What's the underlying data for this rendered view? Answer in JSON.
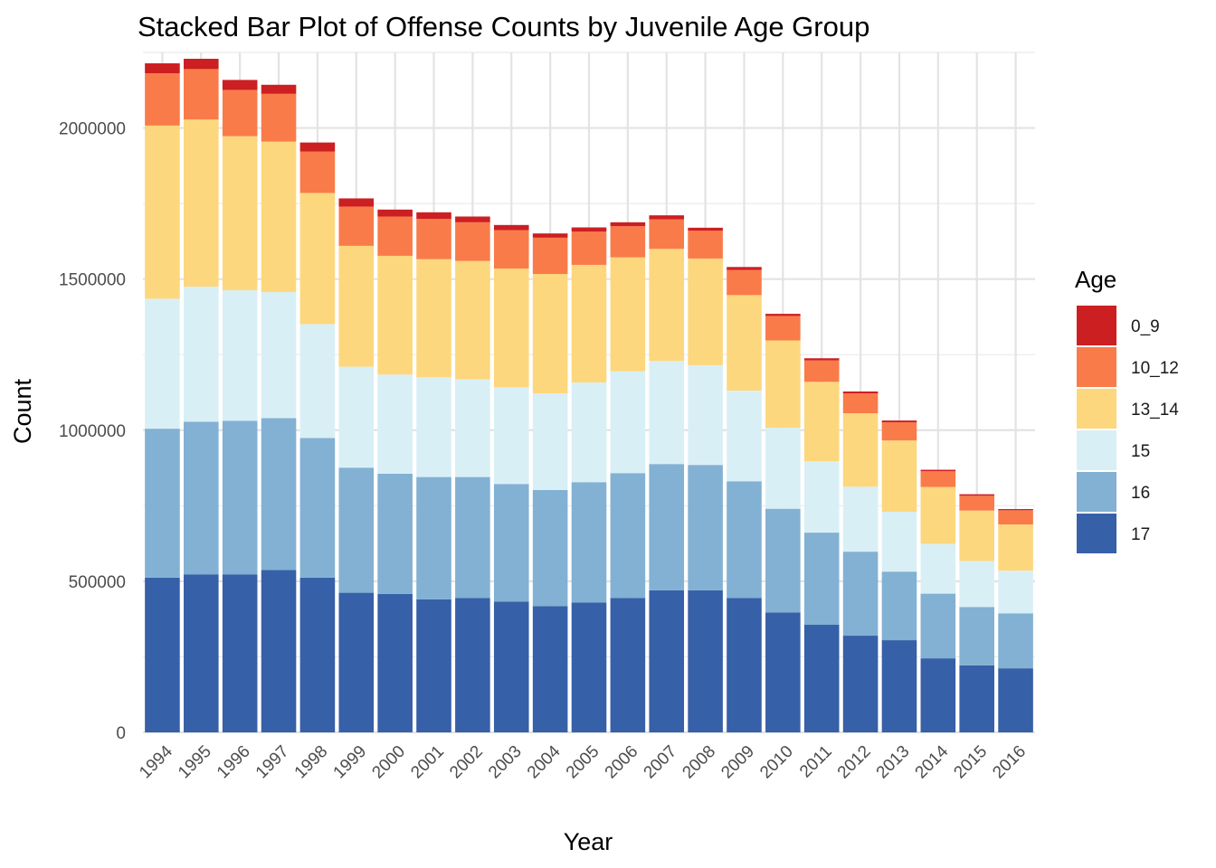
{
  "chart_data": {
    "type": "bar",
    "stacked": true,
    "title": "Stacked Bar Plot of Offense Counts by Juvenile Age Group",
    "xlabel": "Year",
    "ylabel": "Count",
    "ylim": [
      0,
      2250000
    ],
    "yticks": [
      0,
      500000,
      1000000,
      1500000,
      2000000
    ],
    "ytick_labels": [
      "0",
      "500000",
      "1000000",
      "1500000",
      "2000000"
    ],
    "grid": true,
    "legend_position": "right",
    "legend_title": "Age",
    "categories": [
      "1994",
      "1995",
      "1996",
      "1997",
      "1998",
      "1999",
      "2000",
      "2001",
      "2002",
      "2003",
      "2004",
      "2005",
      "2006",
      "2007",
      "2008",
      "2009",
      "2010",
      "2011",
      "2012",
      "2013",
      "2014",
      "2015",
      "2016"
    ],
    "series": [
      {
        "name": "17",
        "color": "#3660A8",
        "values": [
          512000,
          523000,
          523000,
          537000,
          512000,
          462000,
          458000,
          440000,
          445000,
          433000,
          418000,
          430000,
          445000,
          470000,
          470000,
          445000,
          397000,
          356000,
          320000,
          305000,
          245000,
          222000,
          212000
        ]
      },
      {
        "name": "16",
        "color": "#82B1D3",
        "values": [
          493000,
          505000,
          508000,
          503000,
          462000,
          414000,
          398000,
          405000,
          400000,
          389000,
          384000,
          398000,
          413000,
          418000,
          415000,
          386000,
          343000,
          305000,
          278000,
          227000,
          214000,
          193000,
          182000
        ]
      },
      {
        "name": "15",
        "color": "#D9EFF6",
        "values": [
          430000,
          447000,
          432000,
          417000,
          377000,
          334000,
          328000,
          330000,
          323000,
          320000,
          320000,
          330000,
          337000,
          341000,
          330000,
          300000,
          268000,
          236000,
          215000,
          198000,
          165000,
          152000,
          141000
        ]
      },
      {
        "name": "13_14",
        "color": "#FDD77D",
        "values": [
          573000,
          553000,
          510000,
          498000,
          434000,
          400000,
          393000,
          391000,
          392000,
          393000,
          395000,
          389000,
          377000,
          371000,
          353000,
          316000,
          289000,
          263000,
          243000,
          236000,
          188000,
          167000,
          153000
        ]
      },
      {
        "name": "10_12",
        "color": "#F97B4A",
        "values": [
          173000,
          167000,
          153000,
          158000,
          137000,
          130000,
          130000,
          133000,
          128000,
          127000,
          120000,
          110000,
          103000,
          98000,
          92000,
          83000,
          81000,
          71000,
          66000,
          60000,
          52000,
          49000,
          47000
        ]
      },
      {
        "name": "0_9",
        "color": "#CC1F22",
        "values": [
          33000,
          34000,
          33000,
          30000,
          30000,
          27000,
          23000,
          22000,
          19000,
          17000,
          14000,
          14000,
          13000,
          13000,
          10000,
          10000,
          7000,
          7000,
          6000,
          6000,
          5000,
          5000,
          4000
        ]
      }
    ]
  }
}
